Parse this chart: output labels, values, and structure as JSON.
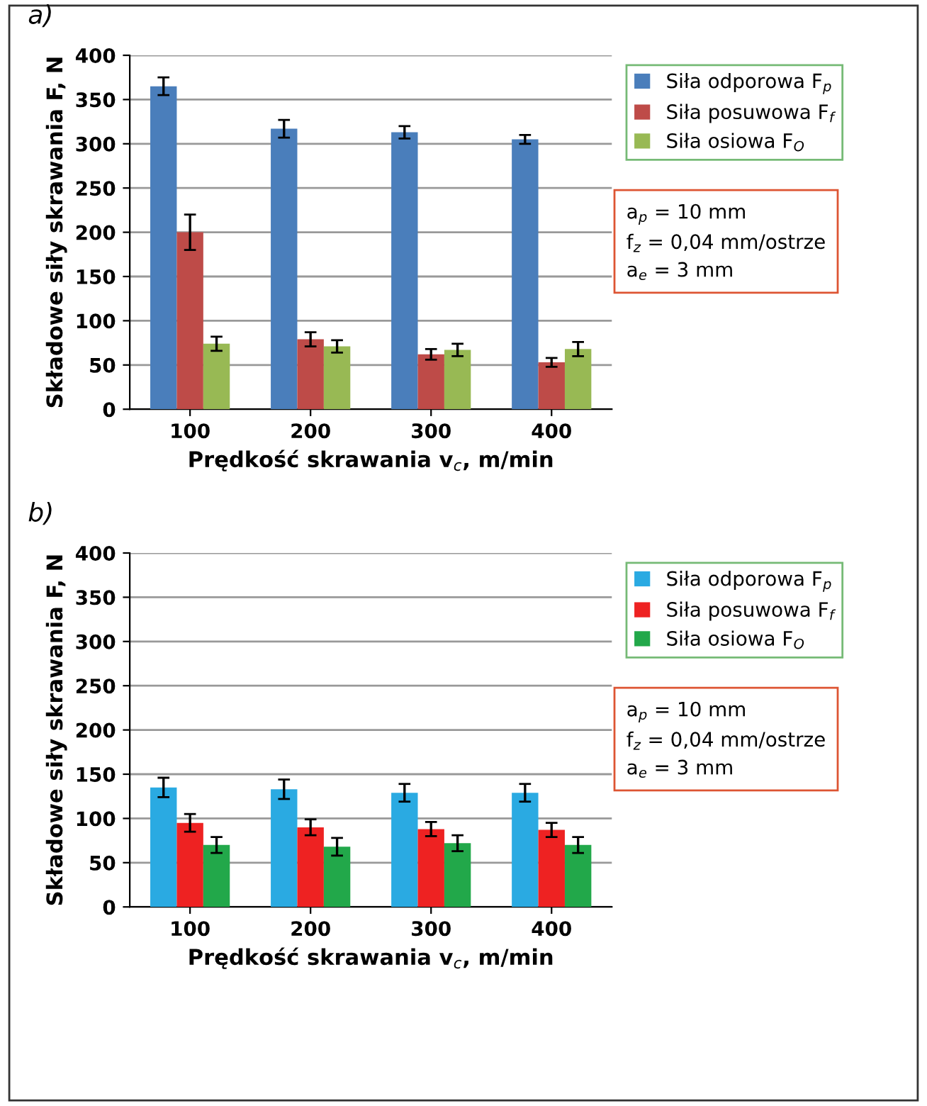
{
  "chart_data": [
    {
      "type": "bar",
      "title": "a)",
      "xlabel": "Prędkość skrawania v$_{c}$, m/min",
      "ylabel": "Składowe siły skrawania F, N",
      "categories": [
        "100",
        "200",
        "300",
        "400"
      ],
      "series": [
        {
          "name": "Siła odporowa F$_{p}$",
          "color": "#4a7ebb",
          "values": [
            365,
            317,
            313,
            305
          ],
          "errors": [
            10,
            10,
            7,
            5
          ]
        },
        {
          "name": "Siła posuwowa F$_{f}$",
          "color": "#be4b48",
          "values": [
            200,
            79,
            62,
            53
          ],
          "errors": [
            20,
            8,
            6,
            5
          ]
        },
        {
          "name": "Siła osiowa F$_{O}$",
          "color": "#98b954",
          "values": [
            74,
            71,
            67,
            68
          ],
          "errors": [
            8,
            7,
            7,
            8
          ]
        }
      ],
      "ylim": [
        0,
        400
      ],
      "yticks": [
        0,
        50,
        100,
        150,
        200,
        250,
        300,
        350,
        400
      ],
      "grid": "y",
      "legend": "top right",
      "annotations": [
        "a$_{p}$ = 10 mm",
        "f$_{z}$ = 0,04 mm/ostrze",
        "a$_{e}$ = 3 mm"
      ]
    },
    {
      "type": "bar",
      "title": "b)",
      "xlabel": "Prędkość skrawania v$_{c}$, m/min",
      "ylabel": "Składowe siły skrawania F, N",
      "categories": [
        "100",
        "200",
        "300",
        "400"
      ],
      "series": [
        {
          "name": "Siła odporowa F$_{p}$",
          "color": "#2aaae2",
          "values": [
            135,
            133,
            129,
            129
          ],
          "errors": [
            11,
            11,
            10,
            10
          ]
        },
        {
          "name": "Siła posuwowa F$_{f}$",
          "color": "#ee2222",
          "values": [
            95,
            90,
            88,
            87
          ],
          "errors": [
            10,
            9,
            8,
            8
          ]
        },
        {
          "name": "Siła osiowa F$_{O}$",
          "color": "#22a84a",
          "values": [
            70,
            68,
            72,
            70
          ],
          "errors": [
            9,
            10,
            9,
            9
          ]
        }
      ],
      "ylim": [
        0,
        400
      ],
      "yticks": [
        0,
        50,
        100,
        150,
        200,
        250,
        300,
        350,
        400
      ],
      "grid": "y",
      "legend": "top right",
      "annotations": [
        "a$_{p}$ = 10 mm",
        "f$_{z}$ = 0,04 mm/ostrze",
        "a$_{e}$ = 3 mm"
      ]
    }
  ]
}
